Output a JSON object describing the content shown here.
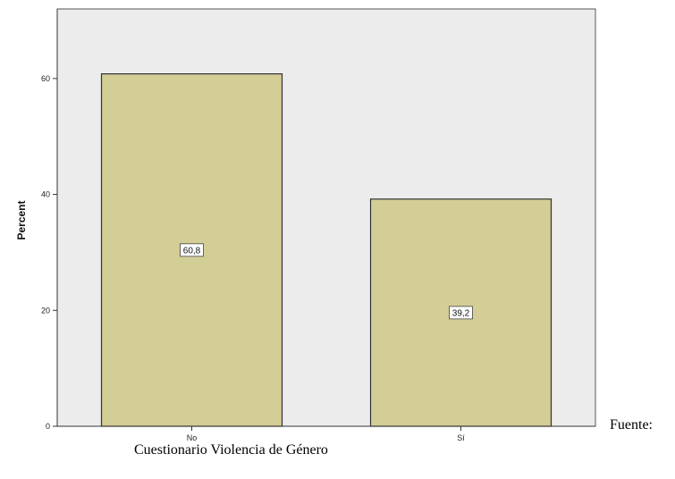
{
  "chart_data": {
    "type": "bar",
    "categories": [
      "No",
      "Sí"
    ],
    "values": [
      60.8,
      39.2
    ],
    "data_labels": [
      "60,8",
      "39,2"
    ],
    "ylabel": "Percent",
    "xlabel": "",
    "ylim": [
      0,
      72
    ],
    "yticks": [
      0,
      20,
      40,
      60
    ],
    "grid": false,
    "plot_background": "#ececec",
    "bar_color": "#d3cd96",
    "bar_edge_color": "#333333"
  },
  "caption": {
    "source_label": "Fuente:",
    "source_text": "Cuestionario Violencia de Género"
  }
}
